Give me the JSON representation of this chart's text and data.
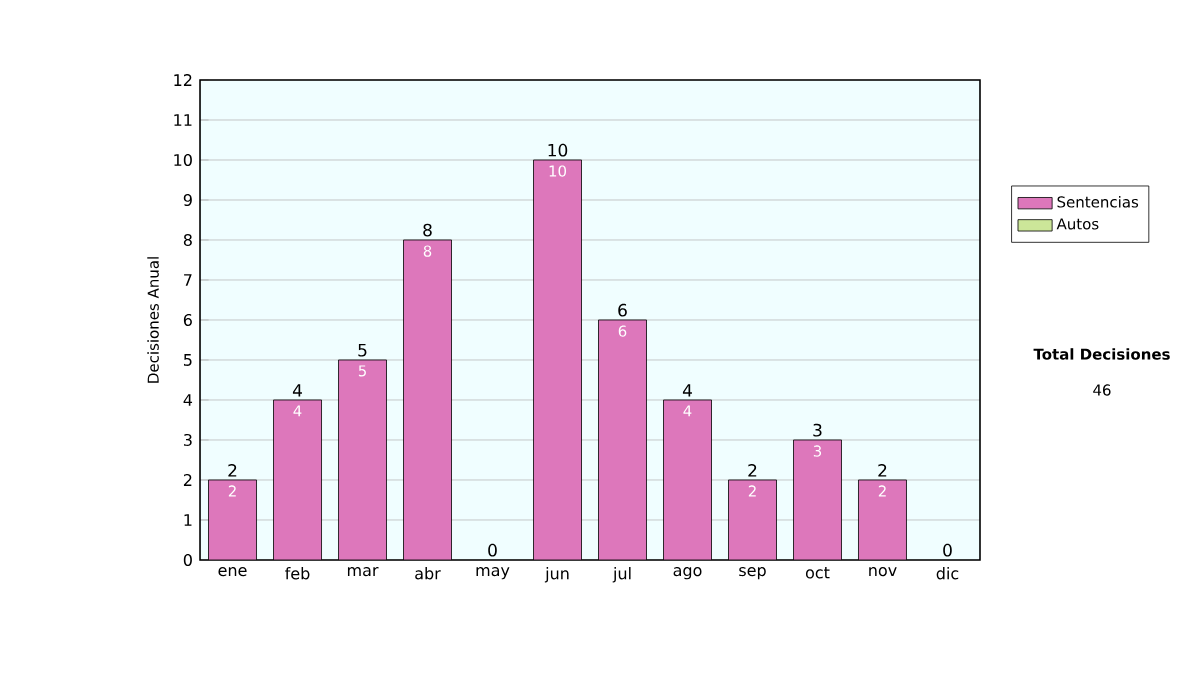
{
  "chart_data": {
    "type": "bar",
    "stacked": true,
    "ylabel": "Decisiones Anual",
    "categories": [
      "ene",
      "feb",
      "mar",
      "abr",
      "may",
      "jun",
      "jul",
      "ago",
      "sep",
      "oct",
      "nov",
      "dic"
    ],
    "series": [
      {
        "name": "Sentencias",
        "color": "#dd77bb",
        "values": [
          2,
          4,
          5,
          8,
          0,
          10,
          6,
          4,
          2,
          3,
          2,
          0
        ],
        "value_labels": [
          "2",
          "4",
          "5",
          "8",
          null,
          "10",
          "6",
          "4",
          "2",
          "3",
          "2",
          null
        ]
      },
      {
        "name": "Autos",
        "color": "#cce699",
        "values": [
          0,
          0,
          0,
          0,
          0,
          0,
          0,
          0,
          0,
          0,
          0,
          0
        ]
      }
    ],
    "totals": [
      "2",
      "4",
      "5",
      "8",
      "0",
      "10",
      "6",
      "4",
      "2",
      "3",
      "2",
      "0"
    ],
    "ylim": [
      0,
      12
    ],
    "yticks": [
      0,
      1,
      2,
      3,
      4,
      5,
      6,
      7,
      8,
      9,
      10,
      11,
      12
    ],
    "grid": "y",
    "legend": "right",
    "annotations": [
      "Total Decisiones",
      "46"
    ]
  }
}
